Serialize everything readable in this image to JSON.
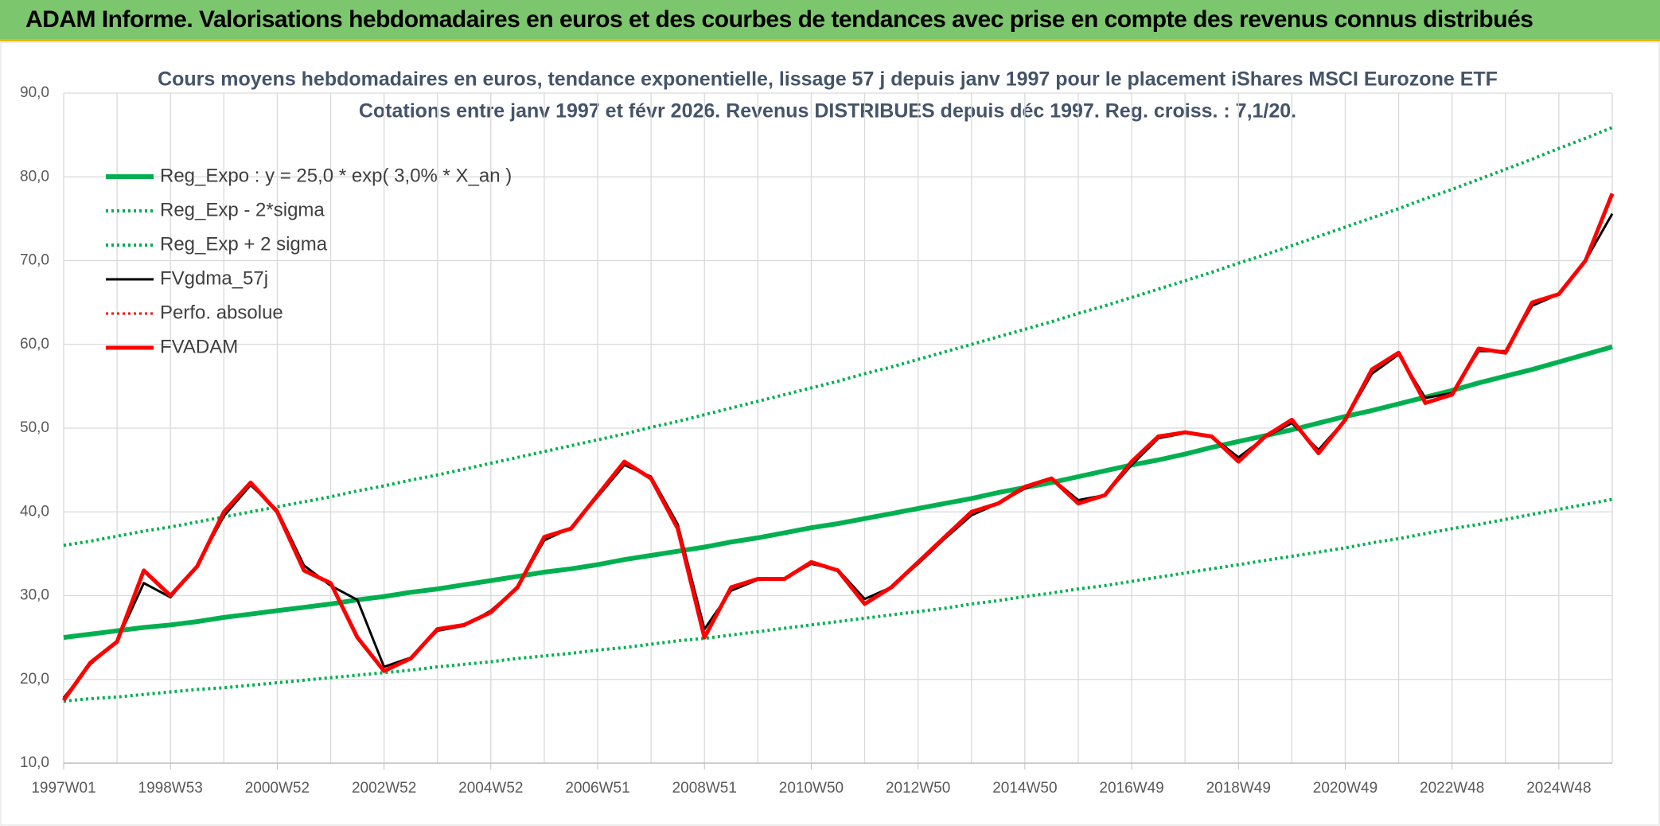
{
  "header": {
    "title": "ADAM Informe. Valorisations hebdomadaires en euros et des courbes de tendances avec prise en compte des revenus connus distribués"
  },
  "chart_data": {
    "type": "line",
    "title": "Cours moyens hebdomadaires en euros, tendance exponentielle, lissage 57 j depuis janv 1997 pour le placement iShares MSCI Eurozone ETF",
    "subtitle": "Cotations entre janv 1997 et févr 2026. Revenus DISTRIBUES depuis déc 1997. Reg. croiss. : 7,1/20.",
    "categories": [
      "1997W01",
      null,
      null,
      null,
      "1998W53",
      null,
      null,
      null,
      "2000W52",
      null,
      null,
      null,
      "2002W52",
      null,
      null,
      null,
      "2004W52",
      null,
      null,
      null,
      "2006W51",
      null,
      null,
      null,
      "2008W51",
      null,
      null,
      null,
      "2010W50",
      null,
      null,
      null,
      "2012W50",
      null,
      null,
      null,
      "2014W50",
      null,
      null,
      null,
      "2016W49",
      null,
      null,
      null,
      "2018W49",
      null,
      null,
      null,
      "2020W49",
      null,
      null,
      null,
      "2022W48",
      null,
      null,
      null,
      "2024W48",
      null,
      null
    ],
    "ylim": [
      10,
      90
    ],
    "yticks": [
      {
        "value": 10,
        "label": "10,0"
      },
      {
        "value": 20,
        "label": "20,0"
      },
      {
        "value": 30,
        "label": "30,0"
      },
      {
        "value": 40,
        "label": "40,0"
      },
      {
        "value": 50,
        "label": "50,0"
      },
      {
        "value": 60,
        "label": "60,0"
      },
      {
        "value": 70,
        "label": "70,0"
      },
      {
        "value": 80,
        "label": "80,0"
      },
      {
        "value": 90,
        "label": "90,0"
      }
    ],
    "grid": true,
    "legend": "top-left",
    "series": [
      {
        "name": "Reg_Expo : y = 25,0 * exp( 3,0% *  X_an )",
        "color": "#00b050",
        "style": "solid",
        "width": 6,
        "values": [
          25.0,
          25.4,
          25.8,
          26.2,
          26.5,
          26.9,
          27.4,
          27.8,
          28.2,
          28.6,
          29.0,
          29.5,
          29.9,
          30.4,
          30.8,
          31.3,
          31.8,
          32.3,
          32.8,
          33.2,
          33.7,
          34.3,
          34.8,
          35.3,
          35.8,
          36.4,
          36.9,
          37.5,
          38.1,
          38.6,
          39.2,
          39.8,
          40.4,
          41.0,
          41.6,
          42.3,
          42.9,
          43.5,
          44.2,
          44.9,
          45.6,
          46.2,
          46.9,
          47.7,
          48.4,
          49.1,
          49.8,
          50.6,
          51.4,
          52.1,
          52.9,
          53.7,
          54.5,
          55.4,
          56.2,
          57.0,
          57.9,
          58.8,
          59.7
        ]
      },
      {
        "name": "Reg_Exp - 2*sigma",
        "color": "#00b050",
        "style": "dotted",
        "width": 4,
        "values": [
          17.4,
          17.7,
          17.9,
          18.2,
          18.5,
          18.8,
          19.0,
          19.3,
          19.6,
          19.9,
          20.2,
          20.5,
          20.8,
          21.1,
          21.5,
          21.8,
          22.1,
          22.5,
          22.8,
          23.1,
          23.5,
          23.8,
          24.2,
          24.6,
          24.9,
          25.3,
          25.7,
          26.1,
          26.5,
          26.9,
          27.3,
          27.7,
          28.1,
          28.5,
          29.0,
          29.4,
          29.9,
          30.3,
          30.8,
          31.2,
          31.7,
          32.2,
          32.7,
          33.2,
          33.7,
          34.2,
          34.7,
          35.2,
          35.7,
          36.3,
          36.8,
          37.4,
          38.0,
          38.5,
          39.1,
          39.7,
          40.3,
          40.9,
          41.5
        ]
      },
      {
        "name": "Reg_Exp + 2 sigma",
        "color": "#00b050",
        "style": "dotted",
        "width": 4,
        "values": [
          36.0,
          36.5,
          37.1,
          37.7,
          38.2,
          38.8,
          39.4,
          40.0,
          40.6,
          41.2,
          41.8,
          42.5,
          43.1,
          43.8,
          44.4,
          45.1,
          45.8,
          46.5,
          47.2,
          47.9,
          48.6,
          49.3,
          50.1,
          50.8,
          51.6,
          52.4,
          53.2,
          54.0,
          54.8,
          55.6,
          56.5,
          57.3,
          58.2,
          59.1,
          60.0,
          60.9,
          61.8,
          62.7,
          63.7,
          64.6,
          65.6,
          66.6,
          67.6,
          68.6,
          69.7,
          70.7,
          71.8,
          72.9,
          74.0,
          75.1,
          76.2,
          77.4,
          78.5,
          79.7,
          80.9,
          82.1,
          83.4,
          84.6,
          85.9
        ]
      },
      {
        "name": "FVgdma_57j",
        "color": "#000000",
        "style": "solid",
        "width": 3,
        "values": [
          17.8,
          21.8,
          24.6,
          31.5,
          29.8,
          33.6,
          39.5,
          43.2,
          40.2,
          33.6,
          31.2,
          29.5,
          21.5,
          22.6,
          25.8,
          26.4,
          28.2,
          31.0,
          36.6,
          38.1,
          41.8,
          45.6,
          44.2,
          38.5,
          26.0,
          30.6,
          31.9,
          32.0,
          33.8,
          33.1,
          29.6,
          31.0,
          33.8,
          36.8,
          39.6,
          41.0,
          42.8,
          44.0,
          41.4,
          42.0,
          45.6,
          48.8,
          49.4,
          49.0,
          46.5,
          48.9,
          50.6,
          47.4,
          51.0,
          56.5,
          58.8,
          53.6,
          54.2,
          59.2,
          59.2,
          64.6,
          66.0,
          70.0,
          75.6
        ]
      },
      {
        "name": "Perfo. absolue",
        "color": "#ff0000",
        "style": "dotted",
        "width": 3,
        "values": [
          17.5,
          22.0,
          24.5,
          33.0,
          30.0,
          33.5,
          40.0,
          43.5,
          40.0,
          33.0,
          31.5,
          25.0,
          21.0,
          22.5,
          26.0,
          26.5,
          28.0,
          31.0,
          37.0,
          38.0,
          42.0,
          46.0,
          44.0,
          38.0,
          25.0,
          31.0,
          32.0,
          32.0,
          34.0,
          33.0,
          29.0,
          31.0,
          34.0,
          37.0,
          40.0,
          41.0,
          43.0,
          44.0,
          41.0,
          42.0,
          46.0,
          49.0,
          49.5,
          49.0,
          46.0,
          49.0,
          51.0,
          47.0,
          51.0,
          57.0,
          59.0,
          53.0,
          54.0,
          59.5,
          59.0,
          65.0,
          66.0,
          70.0,
          78.0
        ]
      },
      {
        "name": "FVADAM",
        "color": "#ff0000",
        "style": "solid",
        "width": 5,
        "values": [
          17.5,
          22.0,
          24.5,
          33.0,
          30.0,
          33.5,
          40.0,
          43.5,
          40.0,
          33.0,
          31.5,
          25.0,
          21.0,
          22.5,
          26.0,
          26.5,
          28.0,
          31.0,
          37.0,
          38.0,
          42.0,
          46.0,
          44.0,
          38.0,
          25.0,
          31.0,
          32.0,
          32.0,
          34.0,
          33.0,
          29.0,
          31.0,
          34.0,
          37.0,
          40.0,
          41.0,
          43.0,
          44.0,
          41.0,
          42.0,
          46.0,
          49.0,
          49.5,
          49.0,
          46.0,
          49.0,
          51.0,
          47.0,
          51.0,
          57.0,
          59.0,
          53.0,
          54.0,
          59.5,
          59.0,
          65.0,
          66.0,
          70.0,
          78.0
        ]
      }
    ]
  }
}
